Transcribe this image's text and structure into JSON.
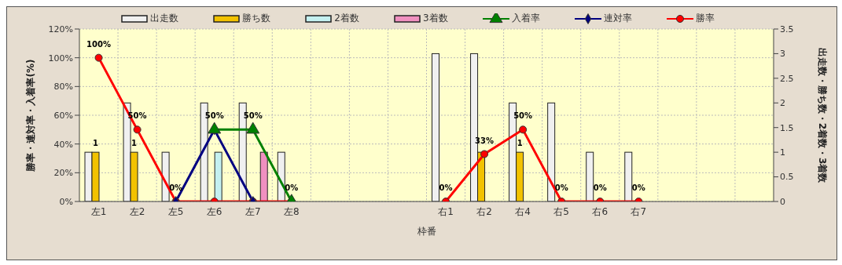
{
  "chart_data": {
    "type": "bar",
    "xlabel": "枠番",
    "ylabel": "勝率・連対率・入着率(%)",
    "y2label": "出走数・勝ち数・2着数・3着数",
    "categories": [
      "左1",
      "左2",
      "左5",
      "左6",
      "左7",
      "左8",
      null,
      null,
      null,
      "右1",
      "右2",
      "右4",
      "右5",
      "右6",
      "右7",
      null,
      null,
      null
    ],
    "series": [
      {
        "name": "出走数",
        "axis": "y2",
        "color": "#f0f0f0",
        "values": [
          1,
          2,
          1,
          2,
          2,
          1,
          null,
          null,
          null,
          3,
          3,
          2,
          2,
          1,
          1,
          null,
          null,
          null
        ]
      },
      {
        "name": "勝ち数",
        "axis": "y2",
        "color": "#f2c200",
        "values": [
          1,
          1,
          0,
          0,
          0,
          0,
          null,
          null,
          null,
          0,
          1,
          1,
          0,
          0,
          0,
          null,
          null,
          null
        ],
        "value_labels": [
          "1",
          "1",
          null,
          null,
          null,
          null,
          null,
          null,
          null,
          null,
          null,
          "1",
          null,
          null,
          null,
          null,
          null,
          null
        ]
      },
      {
        "name": "2着数",
        "axis": "y2",
        "color": "#c4f0f0",
        "values": [
          0,
          0,
          0,
          1,
          0,
          0,
          null,
          null,
          null,
          0,
          0,
          0,
          0,
          0,
          0,
          null,
          null,
          null
        ]
      },
      {
        "name": "3着数",
        "axis": "y2",
        "color": "#f090c0",
        "values": [
          0,
          0,
          0,
          0,
          1,
          0,
          null,
          null,
          null,
          0,
          0,
          0,
          0,
          0,
          0,
          null,
          null,
          null
        ]
      },
      {
        "name": "入着率",
        "type": "line",
        "axis": "y",
        "color": "#008000",
        "marker": "triangle",
        "values": [
          null,
          null,
          null,
          50,
          50,
          0,
          null,
          null,
          null,
          null,
          null,
          null,
          null,
          null,
          null,
          null,
          null,
          null
        ],
        "value_labels": [
          null,
          null,
          null,
          null,
          "50%",
          null,
          null,
          null,
          null,
          null,
          null,
          null,
          null,
          null,
          null,
          null,
          null,
          null
        ]
      },
      {
        "name": "連対率",
        "type": "line",
        "axis": "y",
        "color": "#000080",
        "marker": "diamond",
        "values": [
          null,
          null,
          0,
          50,
          0,
          null,
          null,
          null,
          null,
          null,
          null,
          null,
          null,
          null,
          null,
          null,
          null,
          null
        ],
        "value_labels": [
          null,
          null,
          null,
          "50%",
          null,
          null,
          null,
          null,
          null,
          null,
          null,
          null,
          null,
          null,
          null,
          null,
          null,
          null
        ]
      },
      {
        "name": "勝率",
        "type": "line",
        "axis": "y",
        "color": "#ff0000",
        "marker": "circle",
        "values": [
          100,
          50,
          0,
          0,
          0,
          0,
          null,
          null,
          null,
          0,
          33,
          50,
          0,
          0,
          0,
          null,
          null,
          null
        ],
        "value_labels": [
          "100%",
          "50%",
          "0%",
          null,
          null,
          "0%",
          null,
          null,
          null,
          "0%",
          "33%",
          "50%",
          "0%",
          "0%",
          "0%",
          null,
          null,
          null
        ]
      }
    ],
    "ylim": [
      0,
      120
    ],
    "yticks": [
      {
        "value": 0,
        "label": "0%"
      },
      {
        "value": 20,
        "label": "20%"
      },
      {
        "value": 40,
        "label": "40%"
      },
      {
        "value": 60,
        "label": "60%"
      },
      {
        "value": 80,
        "label": "80%"
      },
      {
        "value": 100,
        "label": "100%"
      },
      {
        "value": 120,
        "label": "120%"
      }
    ],
    "y2lim": [
      0,
      3.5
    ],
    "y2ticks": [
      0,
      0.5,
      1,
      1.5,
      2,
      2.5,
      3,
      3.5
    ],
    "grid": true,
    "legend": "top"
  }
}
